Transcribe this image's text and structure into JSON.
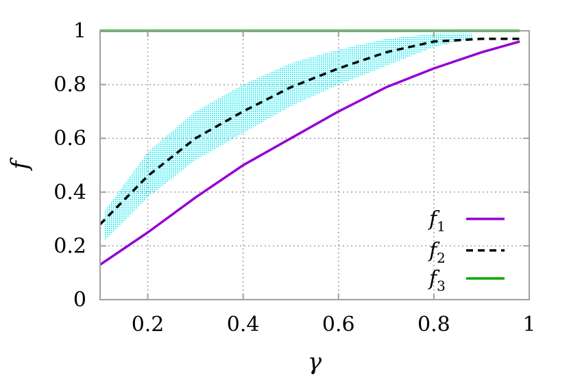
{
  "chart_data": {
    "type": "line",
    "xlabel": "γ",
    "ylabel": "f",
    "xlim": [
      0.1,
      1.0
    ],
    "ylim": [
      0,
      1.0
    ],
    "xticks": [
      0.2,
      0.4,
      0.6,
      0.8,
      1.0
    ],
    "xtick_labels": [
      "0.2",
      "0.4",
      "0.6",
      "0.8",
      "1"
    ],
    "yticks": [
      0,
      0.2,
      0.4,
      0.6,
      0.8,
      1.0
    ],
    "ytick_labels": [
      "0",
      "0.2",
      "0.4",
      "0.6",
      "0.8",
      "1"
    ],
    "grid": true,
    "legend_position": "bottom-right",
    "series": [
      {
        "name": "f",
        "sub": "1",
        "color": "#9400d3",
        "style": "solid",
        "x": [
          0.1,
          0.2,
          0.3,
          0.4,
          0.5,
          0.6,
          0.7,
          0.8,
          0.9,
          0.98
        ],
        "y": [
          0.13,
          0.25,
          0.38,
          0.5,
          0.6,
          0.7,
          0.79,
          0.86,
          0.92,
          0.96
        ]
      },
      {
        "name": "f",
        "sub": "2",
        "color": "#000000",
        "style": "dashed",
        "x": [
          0.1,
          0.2,
          0.3,
          0.4,
          0.5,
          0.6,
          0.7,
          0.8,
          0.9,
          0.98
        ],
        "y": [
          0.28,
          0.46,
          0.6,
          0.7,
          0.79,
          0.86,
          0.92,
          0.96,
          0.97,
          0.97
        ]
      },
      {
        "name": "f",
        "sub": "3",
        "color": "#00aa00",
        "style": "solid",
        "x": [
          0.1,
          0.98
        ],
        "y": [
          1.0,
          1.0
        ]
      }
    ],
    "band": {
      "color": "#00e5ee",
      "x": [
        0.11,
        0.2,
        0.3,
        0.4,
        0.5,
        0.6,
        0.7,
        0.8,
        0.88
      ],
      "lower": [
        0.22,
        0.38,
        0.52,
        0.62,
        0.72,
        0.8,
        0.87,
        0.94,
        0.97
      ],
      "upper": [
        0.33,
        0.55,
        0.7,
        0.8,
        0.88,
        0.93,
        0.97,
        0.99,
        0.99
      ]
    }
  }
}
